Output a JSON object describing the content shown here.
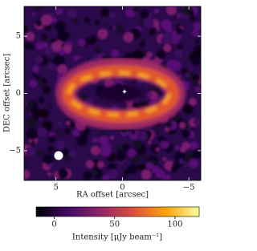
{
  "chart_data": {
    "type": "image",
    "xlabel": "RA offset [arcsec]",
    "ylabel": "DEC offset [arcsec]",
    "xlim": [
      7.4,
      -5.9
    ],
    "ylim": [
      -7.6,
      7.6
    ],
    "xticks": [
      5,
      0,
      {
        "value": -5,
        "label": "−5"
      }
    ],
    "yticks": [
      {
        "value": -5,
        "label": "−5"
      },
      0,
      5
    ],
    "colorbar": {
      "label": "Intensity [μJy beam⁻¹]",
      "lim": [
        -15,
        120
      ],
      "ticks": [
        0,
        50,
        100
      ],
      "colors": [
        "#000004",
        "#420a68",
        "#932667",
        "#dd513a",
        "#fca50a",
        "#fcffa4"
      ]
    }
  }
}
